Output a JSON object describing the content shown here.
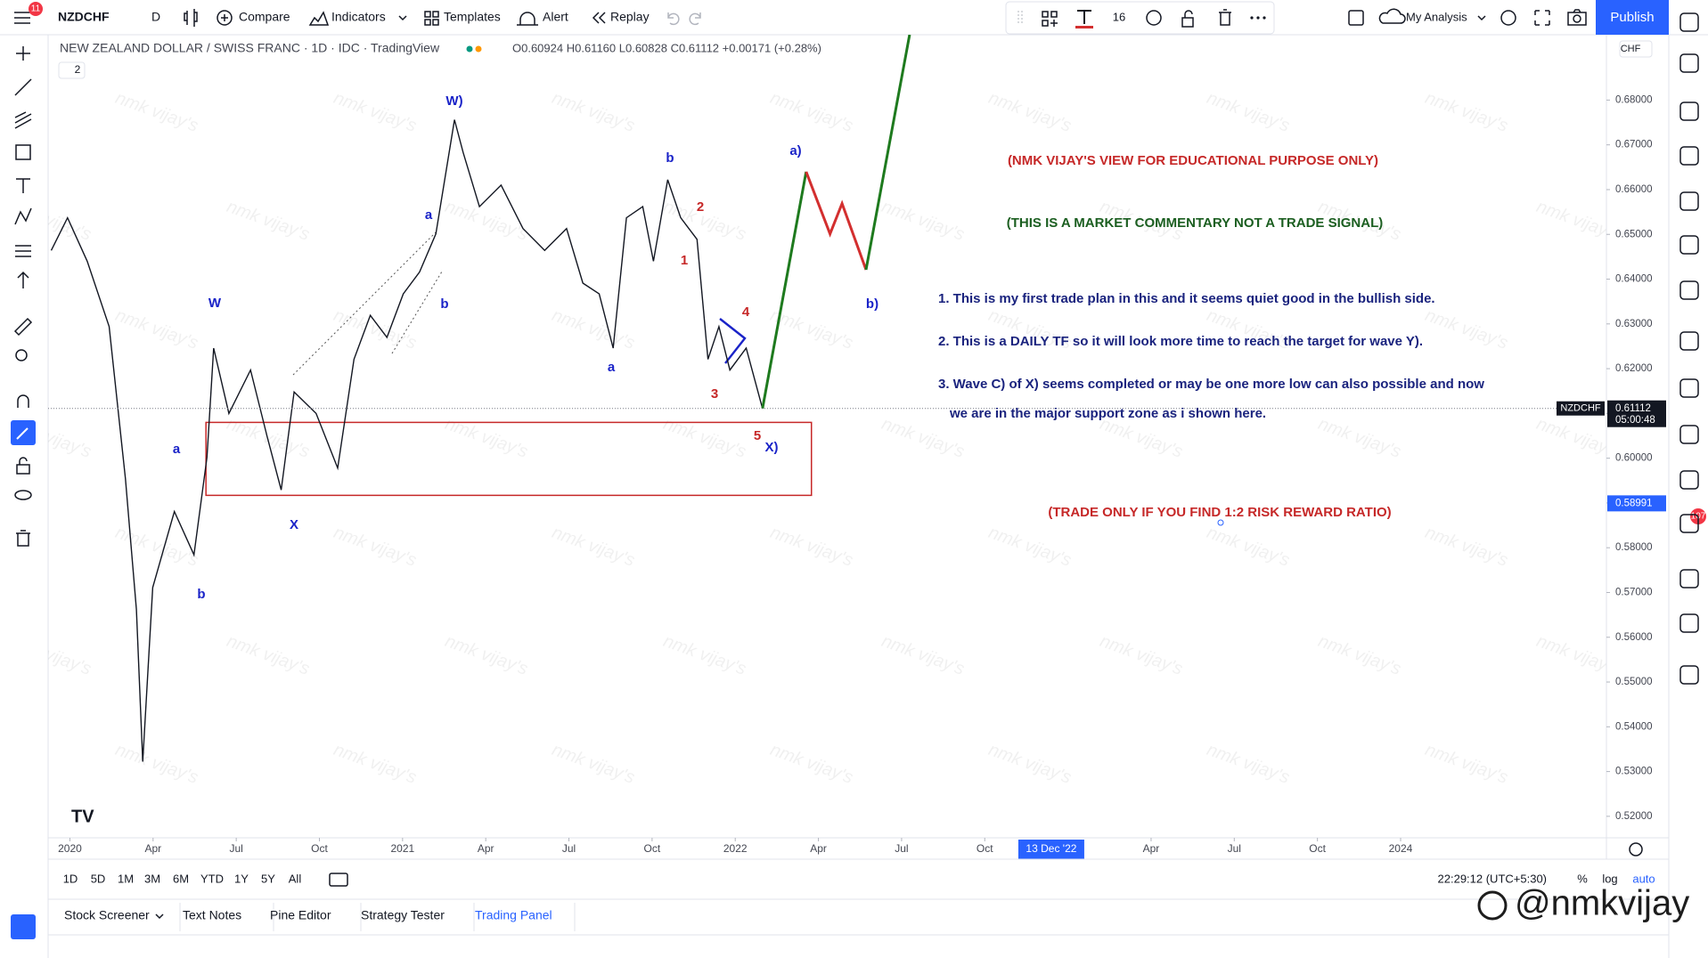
{
  "toolbar": {
    "badge": "11",
    "symbol": "NZDCHF",
    "interval": "D",
    "compare": "Compare",
    "indicators": "Indicators",
    "templates": "Templates",
    "alert": "Alert",
    "replay": "Replay",
    "font_size": "16",
    "layout": "My Analysis",
    "publish": "Publish"
  },
  "legend": {
    "title": "NEW ZEALAND DOLLAR / SWISS FRANC · 1D · IDC · TradingView",
    "ohlc": "O0.60924 H0.61160 L0.60828 C0.61112 +0.00171 (+0.28%)",
    "collapsed": "2",
    "currency": "CHF"
  },
  "chart_data": {
    "type": "line",
    "xlim": [
      2019.9345,
      2024.6187
    ],
    "ylim": [
      0.5152,
      0.6946
    ],
    "xticks": [
      {
        "value": 2020,
        "label": "2020"
      },
      {
        "value": 2020.25,
        "label": "Apr"
      },
      {
        "value": 2020.5,
        "label": "Jul"
      },
      {
        "value": 2020.75,
        "label": "Oct"
      },
      {
        "value": 2021,
        "label": "2021"
      },
      {
        "value": 2021.25,
        "label": "Apr"
      },
      {
        "value": 2021.5,
        "label": "Jul"
      },
      {
        "value": 2021.75,
        "label": "Oct"
      },
      {
        "value": 2022,
        "label": "2022"
      },
      {
        "value": 2022.25,
        "label": "Apr"
      },
      {
        "value": 2022.5,
        "label": "Jul"
      },
      {
        "value": 2022.75,
        "label": "Oct"
      },
      {
        "value": 2023.25,
        "label": "Apr"
      },
      {
        "value": 2023.5,
        "label": "Jul"
      },
      {
        "value": 2023.75,
        "label": "Oct"
      },
      {
        "value": 2024,
        "label": "2024"
      }
    ],
    "yticks": [
      {
        "value": 0.52,
        "label": "0.52000"
      },
      {
        "value": 0.53,
        "label": "0.53000"
      },
      {
        "value": 0.54,
        "label": "0.54000"
      },
      {
        "value": 0.55,
        "label": "0.55000"
      },
      {
        "value": 0.56,
        "label": "0.56000"
      },
      {
        "value": 0.57,
        "label": "0.57000"
      },
      {
        "value": 0.58,
        "label": "0.58000"
      },
      {
        "value": 0.59,
        "label": "0.59000"
      },
      {
        "value": 0.6,
        "label": "0.60000"
      },
      {
        "value": 0.61,
        "label": "0.61000"
      },
      {
        "value": 0.62,
        "label": "0.62000"
      },
      {
        "value": 0.63,
        "label": "0.63000"
      },
      {
        "value": 0.64,
        "label": "0.64000"
      },
      {
        "value": 0.65,
        "label": "0.65000"
      },
      {
        "value": 0.66,
        "label": "0.66000"
      },
      {
        "value": 0.67,
        "label": "0.67000"
      },
      {
        "value": 0.68,
        "label": "0.68000"
      }
    ],
    "series": [
      {
        "color": "#131722",
        "x": [
          2019.944,
          2019.993,
          2020.052,
          2020.118,
          2020.167,
          2020.2,
          2020.219,
          2020.249,
          2020.314,
          2020.373,
          2020.412,
          2020.432,
          2020.478,
          2020.543,
          2020.592,
          2020.635,
          2020.674,
          2020.74,
          2020.805,
          2020.854,
          2020.903,
          2020.953,
          2021.002,
          2021.051,
          2021.1,
          2021.156,
          2021.182,
          2021.231,
          2021.296,
          2021.362,
          2021.427,
          2021.493,
          2021.542,
          2021.591,
          2021.633,
          2021.673,
          2021.722,
          2021.754,
          2021.797,
          2021.836,
          2021.885,
          2021.918,
          2021.951,
          2021.984,
          2022.033,
          2022.082
        ],
        "values": [
          0.6464,
          0.6537,
          0.644,
          0.6294,
          0.5954,
          0.5662,
          0.5322,
          0.5711,
          0.5881,
          0.5784,
          0.6002,
          0.6246,
          0.61,
          0.6197,
          0.6051,
          0.5929,
          0.6148,
          0.61,
          0.5978,
          0.6221,
          0.6319,
          0.627,
          0.6367,
          0.6416,
          0.6501,
          0.6756,
          0.6683,
          0.6562,
          0.661,
          0.6513,
          0.6464,
          0.6513,
          0.6391,
          0.6367,
          0.6246,
          0.6537,
          0.6562,
          0.644,
          0.6622,
          0.6537,
          0.6489,
          0.6221,
          0.6294,
          0.6197,
          0.6246,
          0.6111
        ]
      },
      {
        "color": "#1e7a1e",
        "x": [
          2022.082,
          2022.213
        ],
        "values": [
          0.6111,
          0.664
        ]
      },
      {
        "color": "#d32f2f",
        "x": [
          2022.213,
          2022.285,
          2022.321,
          2022.393
        ],
        "values": [
          0.664,
          0.6501,
          0.6569,
          0.6421
        ]
      },
      {
        "color": "#1e7a1e",
        "x": [
          2022.393,
          2022.524
        ],
        "values": [
          0.6421,
          0.6946
        ]
      }
    ],
    "zone": {
      "color": "#c62828",
      "x": [
        2020.409,
        2022.229
      ],
      "y": [
        0.5917,
        0.608
      ]
    },
    "last_price": {
      "value": 0.61112,
      "label": "0.61112"
    },
    "countdown": "05:00:48",
    "cursor_price": {
      "value": 0.58991,
      "label": "0.58991"
    },
    "cursor_date": {
      "value": 2022.95,
      "label": "13 Dec '22"
    },
    "wave_labels": [
      "W)",
      "W",
      "a",
      "b",
      "X",
      "a",
      "b",
      "b",
      "a",
      "1",
      "2",
      "3",
      "4",
      "5",
      "X)",
      "a)",
      "b)"
    ]
  },
  "annotations": {
    "disclaimer": "(NMK VIJAY'S VIEW FOR EDUCATIONAL PURPOSE ONLY)",
    "commentary": "(THIS IS A MARKET COMMENTARY NOT A TRADE SIGNAL)",
    "notes": [
      "1. This is my first trade plan in this and it seems quiet good in the bullish side.",
      "2. This is a DAILY TF so it will look more time to reach the target for wave Y).",
      "3. Wave C) of X) seems completed or may be one more low can also possible and now",
      "we are in the major support zone as i shown here."
    ],
    "risk": "(TRADE ONLY IF YOU FIND 1:2 RISK REWARD RATIO)"
  },
  "watermark": "nmk vijay's",
  "bottom_bar": {
    "ranges": [
      "1D",
      "5D",
      "1M",
      "3M",
      "6M",
      "YTD",
      "1Y",
      "5Y",
      "All"
    ],
    "clock": "22:29:12 (UTC+5:30)",
    "percent": "%",
    "log": "log",
    "auto": "auto"
  },
  "tabs": [
    "Stock Screener",
    "Text Notes",
    "Pine Editor",
    "Strategy Tester",
    "Trading Panel"
  ],
  "sidebar_badge": "107",
  "signature": "@nmkvijay"
}
